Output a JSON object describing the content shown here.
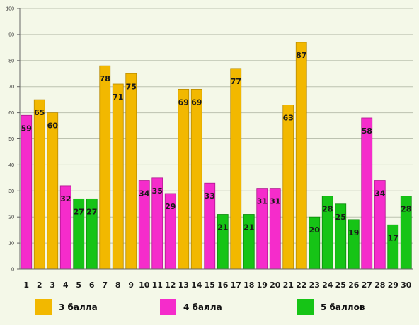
{
  "chart_data": {
    "type": "bar",
    "categories": [
      "1",
      "2",
      "3",
      "4",
      "5",
      "6",
      "7",
      "8",
      "9",
      "10",
      "11",
      "12",
      "13",
      "14",
      "15",
      "16",
      "17",
      "18",
      "19",
      "20",
      "21",
      "22",
      "23",
      "24",
      "25",
      "26",
      "27",
      "28",
      "29",
      "30"
    ],
    "values": [
      59,
      65,
      60,
      32,
      27,
      27,
      78,
      71,
      75,
      34,
      35,
      29,
      69,
      69,
      33,
      21,
      77,
      21,
      31,
      31,
      63,
      87,
      20,
      28,
      25,
      19,
      58,
      34,
      17,
      28
    ],
    "groups": [
      "4 балла",
      "3 балла",
      "3 балла",
      "4 балла",
      "5 баллов",
      "5 баллов",
      "3 балла",
      "3 балла",
      "3 балла",
      "4 балла",
      "4 балла",
      "4 балла",
      "3 балла",
      "3 балла",
      "4 балла",
      "5 баллов",
      "3 балла",
      "5 баллов",
      "4 балла",
      "4 балла",
      "3 балла",
      "3 балла",
      "5 баллов",
      "5 баллов",
      "5 баллов",
      "5 баллов",
      "4 балла",
      "4 балла",
      "5 баллов",
      "5 баллов"
    ],
    "ylim": [
      0,
      100
    ],
    "yticks": [
      0,
      10,
      20,
      30,
      40,
      50,
      60,
      70,
      80,
      90,
      100
    ],
    "grid": true,
    "legend": [
      {
        "name": "3 балла",
        "color": "#f2b800"
      },
      {
        "name": "4 балла",
        "color": "#f52ccb"
      },
      {
        "name": "5 баллов",
        "color": "#16c416"
      }
    ],
    "legend_position": "bottom"
  }
}
